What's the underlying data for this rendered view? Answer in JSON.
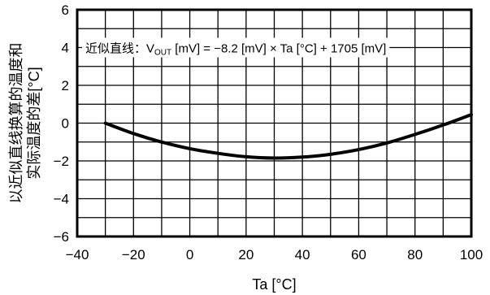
{
  "chart_data": {
    "type": "line",
    "title": "",
    "xlabel": "Ta [°C]",
    "ylabel_lines": [
      "以近似直线换算的温度和",
      "实际温度的差[°C]"
    ],
    "xlim": [
      -40,
      100
    ],
    "ylim": [
      -6,
      6
    ],
    "x_ticks": [
      -40,
      -20,
      0,
      20,
      40,
      60,
      80,
      100
    ],
    "x_tick_labels": [
      "−40",
      "−20",
      "0",
      "20",
      "40",
      "60",
      "80",
      "100"
    ],
    "y_ticks": [
      -6,
      -4,
      -2,
      0,
      2,
      4,
      6
    ],
    "y_tick_labels": [
      "−6",
      "−4",
      "−2",
      "0",
      "2",
      "4",
      "6"
    ],
    "x_minor_step": 10,
    "y_minor_step": 1,
    "grid": true,
    "annotation": {
      "prefix": "近似直线：",
      "v": "V",
      "out_sub": "OUT",
      "rest": " [mV] = −8.2 [mV] × Ta [°C] + 1705 [mV]",
      "y": 4
    },
    "series": [
      {
        "x": [
          -30,
          -20,
          -10,
          0,
          10,
          20,
          30,
          40,
          50,
          60,
          70,
          80,
          90,
          100
        ],
        "y": [
          0.0,
          -0.55,
          -1.0,
          -1.35,
          -1.6,
          -1.78,
          -1.85,
          -1.8,
          -1.65,
          -1.4,
          -1.05,
          -0.6,
          -0.1,
          0.45
        ]
      }
    ]
  }
}
